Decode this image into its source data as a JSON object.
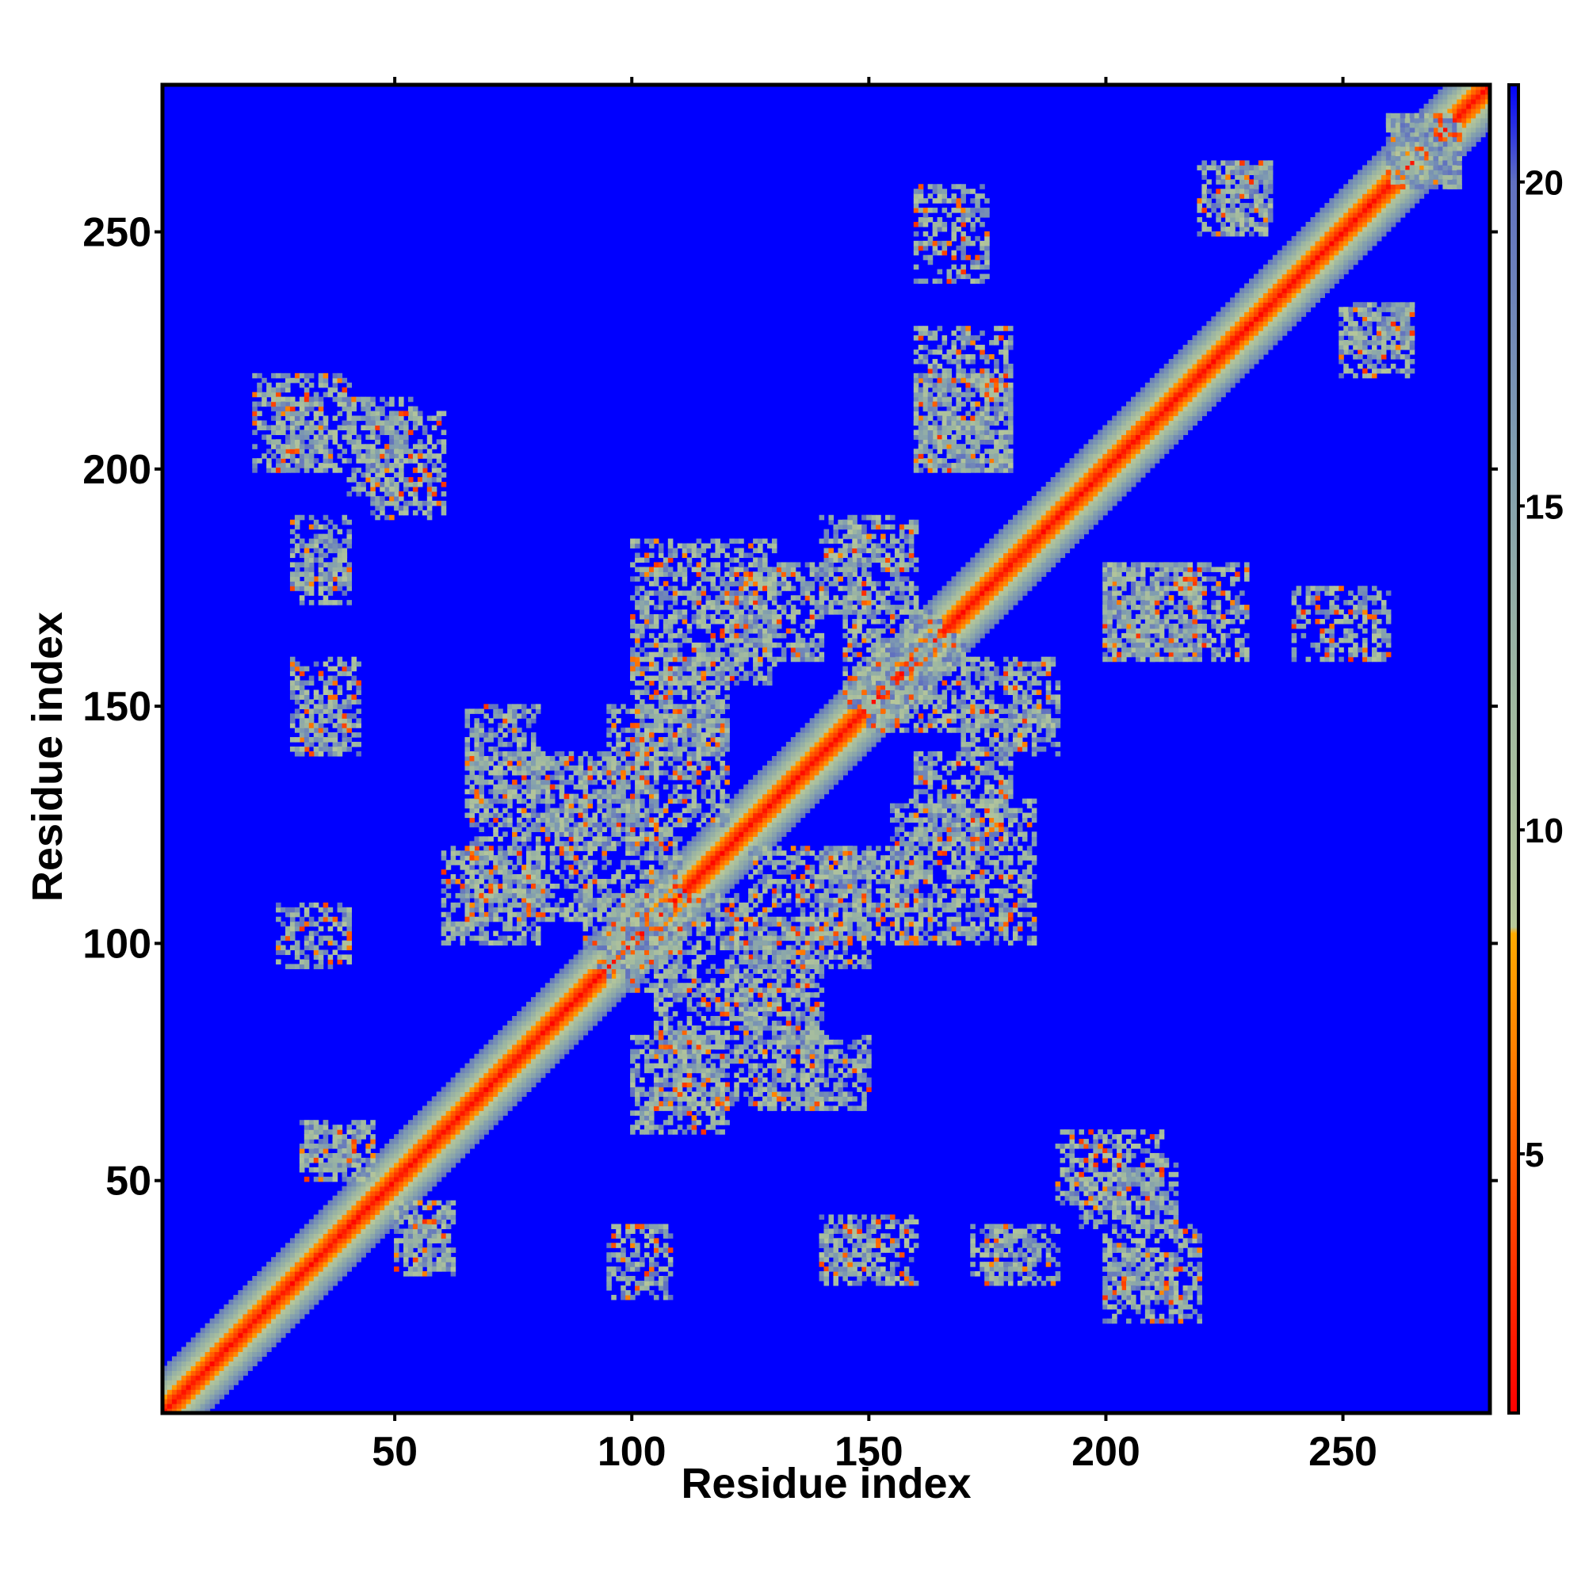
{
  "chart_data": {
    "type": "heatmap",
    "xlabel": "Residue index",
    "ylabel": "Residue index",
    "xlim": [
      1,
      281
    ],
    "ylim": [
      1,
      281
    ],
    "xticks": [
      50,
      100,
      150,
      200,
      250
    ],
    "yticks": [
      50,
      100,
      150,
      200,
      250
    ],
    "colorbar": {
      "range": [
        1,
        21.5
      ],
      "ticks": [
        5,
        10,
        15,
        20
      ],
      "colors": [
        {
          "value": 1,
          "color": "#ff0000"
        },
        {
          "value": 5,
          "color": "#ff5a00"
        },
        {
          "value": 8.4,
          "color": "#ffaa00"
        },
        {
          "value": 8.5,
          "color": "#b8c89a"
        },
        {
          "value": 12,
          "color": "#9fb8a0"
        },
        {
          "value": 16,
          "color": "#7f9cb0"
        },
        {
          "value": 20,
          "color": "#6070c0"
        },
        {
          "value": 21.5,
          "color": "#0000ff"
        }
      ]
    },
    "background_value": 21.5,
    "matrix_description": "Symmetric pairwise residue distance map (values capped at 21.5); red diagonal, yellow-green contact bands",
    "contact_segments": [
      {
        "x": [
          20,
          40
        ],
        "y": [
          200,
          220
        ]
      },
      {
        "x": [
          45,
          60
        ],
        "y": [
          190,
          212
        ]
      },
      {
        "x": [
          30,
          40
        ],
        "y": [
          172,
          185
        ]
      },
      {
        "x": [
          30,
          40
        ],
        "y": [
          140,
          150
        ]
      },
      {
        "x": [
          25,
          40
        ],
        "y": [
          95,
          108
        ]
      },
      {
        "x": [
          30,
          42
        ],
        "y": [
          52,
          62
        ]
      },
      {
        "x": [
          50,
          62
        ],
        "y": [
          30,
          45
        ]
      },
      {
        "x": [
          65,
          90
        ],
        "y": [
          105,
          140
        ]
      },
      {
        "x": [
          90,
          110
        ],
        "y": [
          95,
          125
        ]
      },
      {
        "x": [
          95,
          120
        ],
        "y": [
          125,
          150
        ]
      },
      {
        "x": [
          100,
          130
        ],
        "y": [
          155,
          185
        ]
      },
      {
        "x": [
          100,
          120
        ],
        "y": [
          60,
          80
        ]
      },
      {
        "x": [
          120,
          140
        ],
        "y": [
          80,
          105
        ]
      },
      {
        "x": [
          130,
          150
        ],
        "y": [
          65,
          80
        ]
      },
      {
        "x": [
          140,
          160
        ],
        "y": [
          100,
          120
        ]
      },
      {
        "x": [
          140,
          160
        ],
        "y": [
          28,
          42
        ]
      },
      {
        "x": [
          145,
          160
        ],
        "y": [
          170,
          190
        ]
      },
      {
        "x": [
          150,
          170
        ],
        "y": [
          145,
          165
        ]
      },
      {
        "x": [
          160,
          180
        ],
        "y": [
          120,
          140
        ]
      },
      {
        "x": [
          170,
          190
        ],
        "y": [
          140,
          150
        ]
      },
      {
        "x": [
          175,
          190
        ],
        "y": [
          28,
          40
        ]
      },
      {
        "x": [
          160,
          180
        ],
        "y": [
          200,
          230
        ]
      },
      {
        "x": [
          195,
          215
        ],
        "y": [
          40,
          55
        ]
      },
      {
        "x": [
          200,
          215
        ],
        "y": [
          25,
          35
        ]
      },
      {
        "x": [
          200,
          220
        ],
        "y": [
          160,
          180
        ]
      },
      {
        "x": [
          225,
          235
        ],
        "y": [
          250,
          265
        ]
      },
      {
        "x": [
          250,
          265
        ],
        "y": [
          220,
          235
        ]
      },
      {
        "x": [
          240,
          260
        ],
        "y": [
          160,
          175
        ]
      },
      {
        "x": [
          260,
          275
        ],
        "y": [
          260,
          275
        ]
      }
    ]
  }
}
